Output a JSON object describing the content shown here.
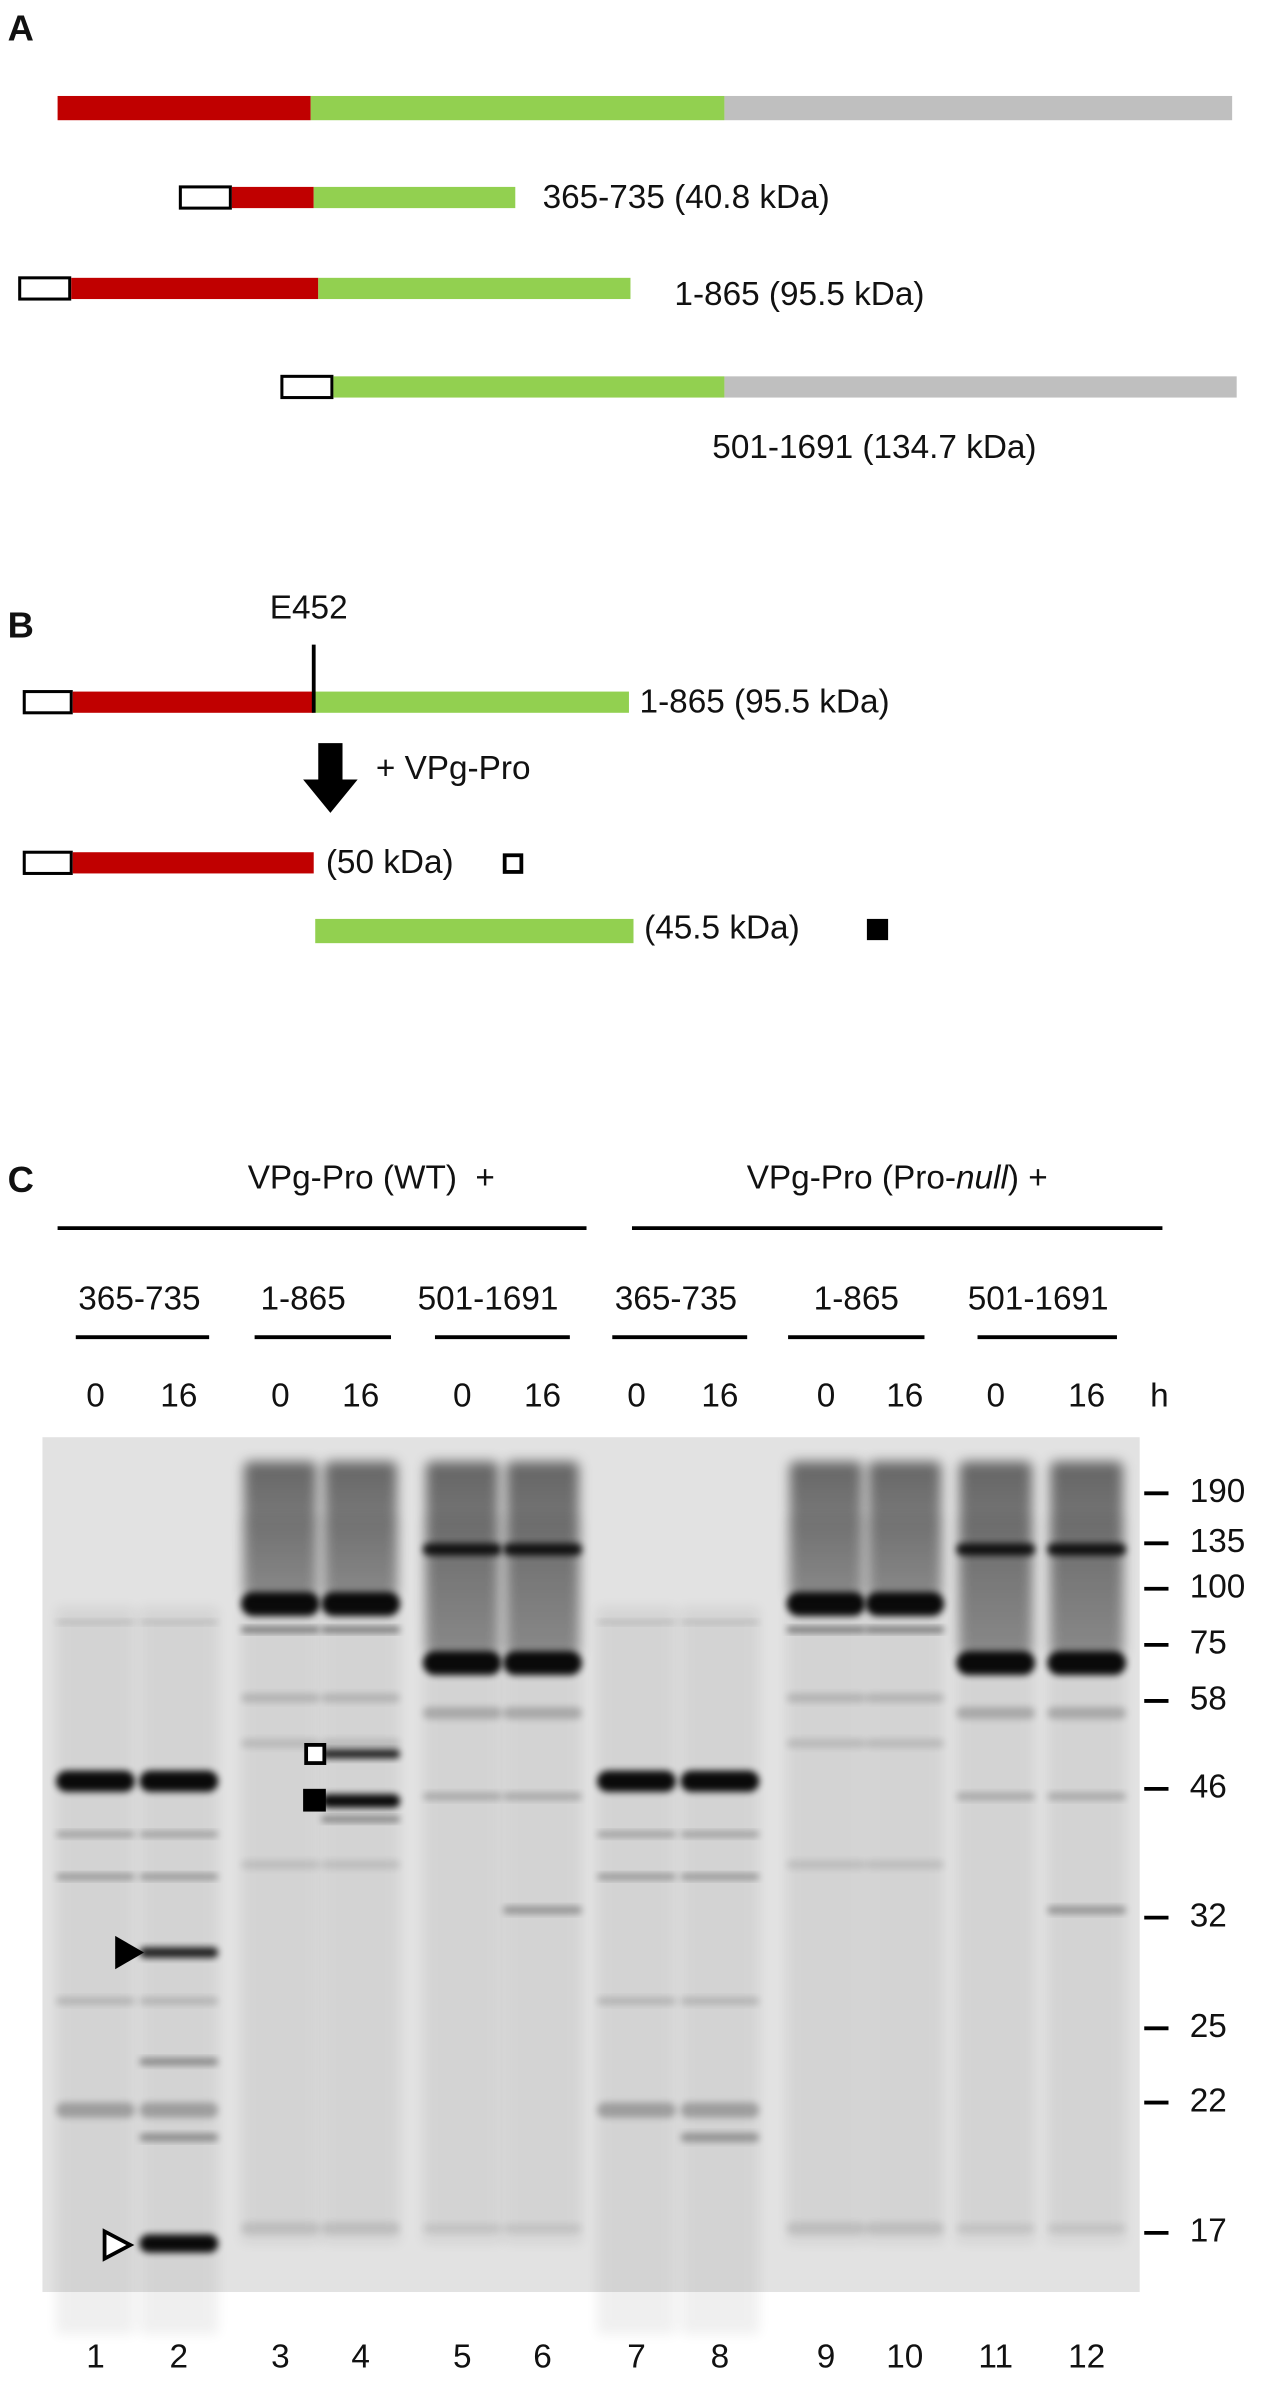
{
  "panel_a": {
    "label": "A",
    "constructs": [
      "365-735 (40.8 kDa)",
      "1-865 (95.5 kDa)",
      "501-1691 (134.7 kDa)"
    ]
  },
  "panel_b": {
    "label": "B",
    "site": "E452",
    "construct": "1-865 (95.5 kDa)",
    "treatment": "+ VPg-Pro",
    "products": [
      "(50 kDa)",
      "(45.5 kDa)"
    ]
  },
  "panel_c": {
    "label": "C",
    "groups": [
      {
        "prefix": "VPg-Pro (WT)  +"
      },
      {
        "prefix": "VPg-Pro (Pro-",
        "italic": "null",
        "suffix": ") +"
      }
    ],
    "constructs": [
      "365-735",
      "1-865",
      "501-1691",
      "365-735",
      "1-865",
      "501-1691"
    ],
    "times": [
      "0",
      "16",
      "0",
      "16",
      "0",
      "16",
      "0",
      "16",
      "0",
      "16",
      "0",
      "16"
    ],
    "time_unit": "h",
    "markers": [
      "190",
      "135",
      "100",
      "75",
      "58",
      "46",
      "32",
      "25",
      "22",
      "17"
    ],
    "lanes": [
      "1",
      "2",
      "3",
      "4",
      "5",
      "6",
      "7",
      "8",
      "9",
      "10",
      "11",
      "12"
    ]
  }
}
